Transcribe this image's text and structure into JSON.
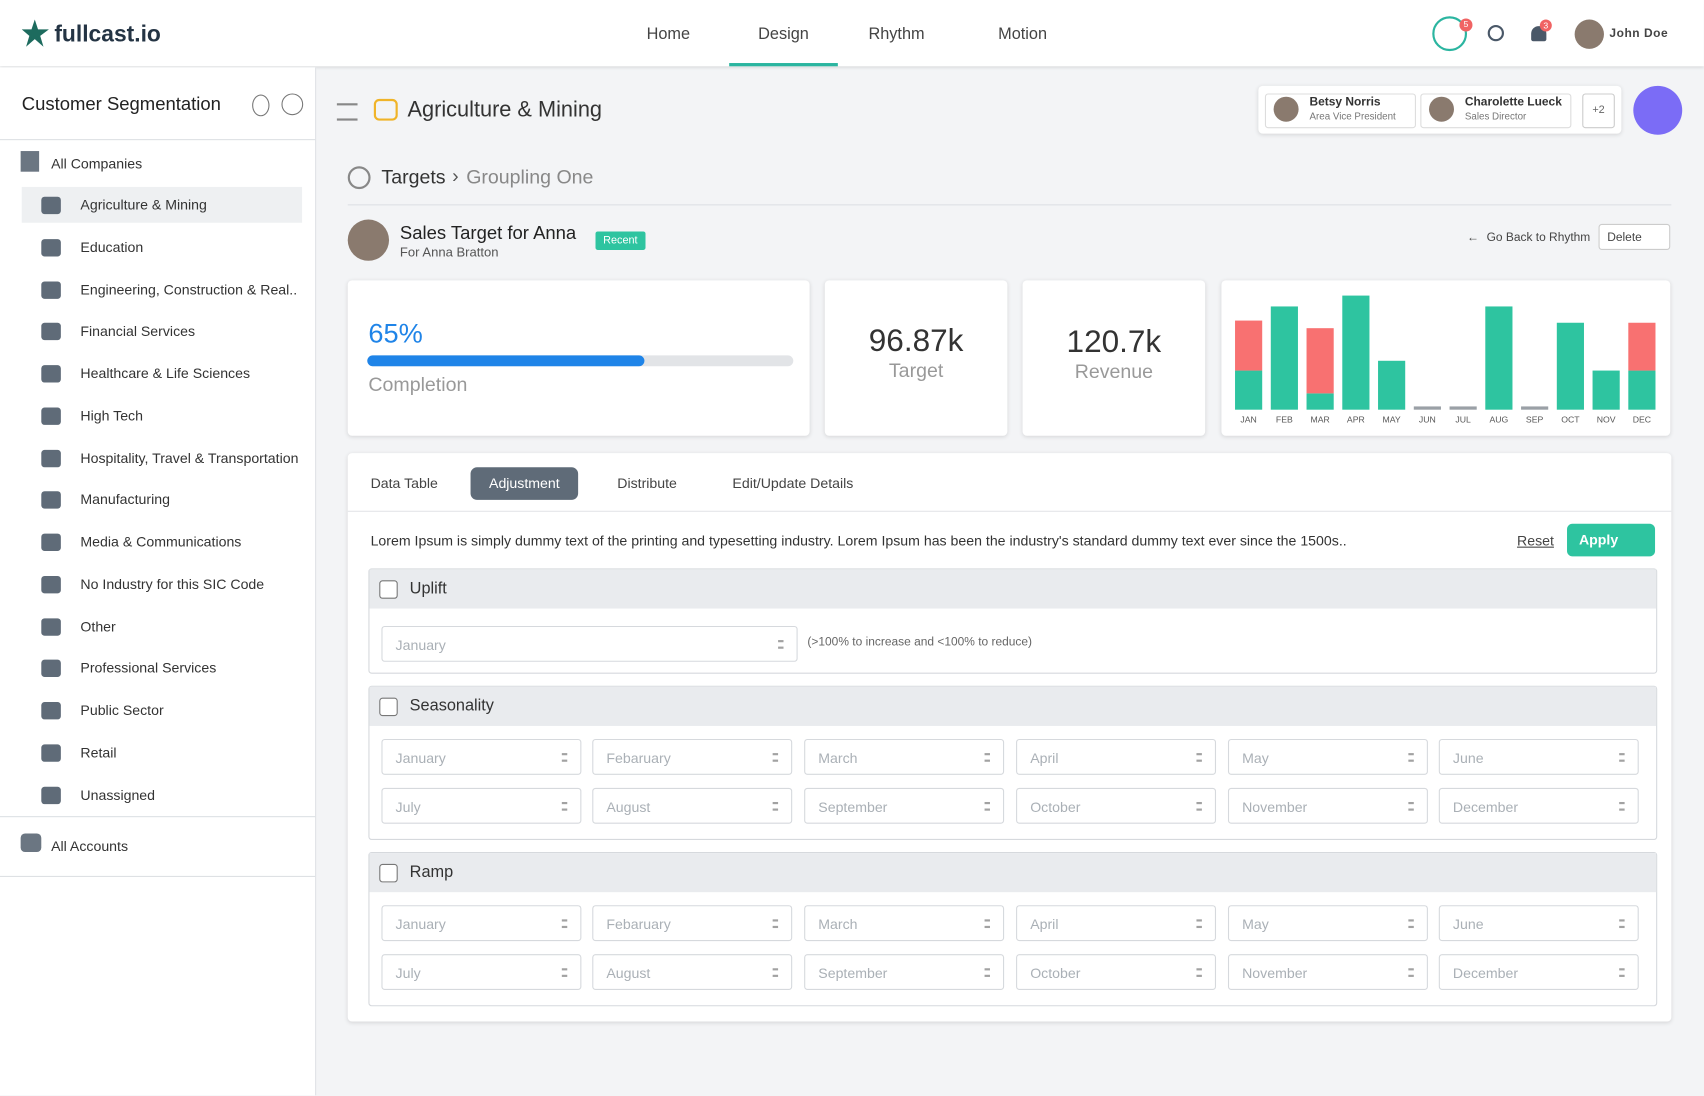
{
  "brand": "fullcast.io",
  "nav": [
    "Home",
    "Design",
    "Rhythm",
    "Motion"
  ],
  "badges": {
    "robot": "5",
    "bell": "3"
  },
  "user": "John Doe",
  "sidebar": {
    "title": "Customer Segmentation",
    "group": "All Companies",
    "items": [
      "Agriculture & Mining",
      "Education",
      "Engineering, Construction & Real..",
      "Financial Services",
      "Healthcare & Life Sciences",
      "High Tech",
      "Hospitality, Travel & Transportation",
      "Manufacturing",
      "Media & Communications",
      "No Industry for this SIC Code",
      "Other",
      "Professional Services",
      "Public Sector",
      "Retail",
      "Unassigned"
    ],
    "footer": "All Accounts"
  },
  "header": {
    "title": "Agriculture & Mining",
    "people": [
      {
        "name": "Betsy Norris",
        "role": "Area Vice President"
      },
      {
        "name": "Charolette Lueck",
        "role": "Sales Director"
      }
    ],
    "more": "+2"
  },
  "breadcrumb": [
    "Targets",
    "Groupling One"
  ],
  "target": {
    "title": "Sales Target for Anna",
    "subtitle": "For Anna Bratton",
    "tag": "Recent",
    "back": "Go Back to Rhythm",
    "delete": "Delete"
  },
  "completion": {
    "value": 65,
    "label": "65%",
    "caption": "Completion"
  },
  "stats": [
    {
      "value": "96.87k",
      "caption": "Target"
    },
    {
      "value": "120.7k",
      "caption": "Revenue"
    }
  ],
  "chart_data": {
    "type": "bar",
    "stacked": true,
    "categories": [
      "JAN",
      "FEB",
      "MAR",
      "APR",
      "MAY",
      "JUN",
      "JUL",
      "AUG",
      "SEP",
      "OCT",
      "NOV",
      "DEC"
    ],
    "series": [
      {
        "color": "#2ec4a0",
        "values": [
          36,
          95,
          15,
          105,
          45,
          0,
          0,
          95,
          0,
          80,
          36,
          36
        ]
      },
      {
        "color": "#f87171",
        "values": [
          46,
          0,
          60,
          0,
          0,
          0,
          0,
          0,
          0,
          0,
          0,
          44
        ]
      }
    ],
    "ylim": [
      0,
      110
    ]
  },
  "tabs": [
    "Data Table",
    "Adjustment",
    "Distribute",
    "Edit/Update Details"
  ],
  "description": "Lorem Ipsum is simply dummy text of the printing and typesetting industry. Lorem Ipsum has been the industry's standard dummy text ever since the 1500s..",
  "reset": "Reset",
  "apply": "Apply",
  "uplift": {
    "title": "Uplift",
    "placeholder": "January",
    "hint": "(>100% to increase and <100% to reduce)"
  },
  "seasonality": {
    "title": "Seasonality",
    "months": [
      "January",
      "Febaruary",
      "March",
      "April",
      "May",
      "June",
      "July",
      "August",
      "September",
      "October",
      "November",
      "December"
    ]
  },
  "ramp": {
    "title": "Ramp",
    "months": [
      "January",
      "Febaruary",
      "March",
      "April",
      "May",
      "June",
      "July",
      "August",
      "September",
      "October",
      "November",
      "December"
    ]
  }
}
